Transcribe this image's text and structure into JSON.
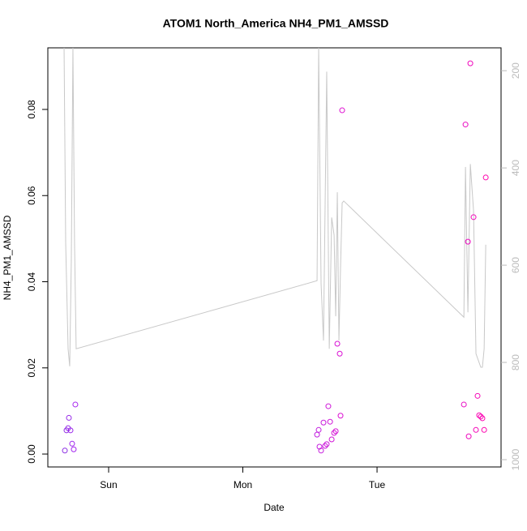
{
  "chart_data": {
    "type": "scatter",
    "title": "ATOM1 North_America NH4_PM1_AMSSD",
    "xlabel": "Date",
    "ylabel": "NH4_PM1_AMSSD",
    "x": [
      -0.326,
      -0.314,
      -0.302,
      -0.296,
      -0.284,
      -0.272,
      -0.26,
      -0.248,
      1.553,
      1.565,
      1.571,
      1.583,
      1.601,
      1.613,
      1.625,
      1.637,
      1.65,
      1.662,
      1.68,
      1.692,
      1.704,
      1.722,
      1.728,
      1.74,
      2.647,
      2.659,
      2.677,
      2.683,
      2.695,
      2.719,
      2.737,
      2.749,
      2.761,
      2.773,
      2.785,
      2.798,
      2.81
    ],
    "values": [
      0.0008,
      0.0055,
      0.006,
      0.0084,
      0.0055,
      0.0024,
      0.0011,
      0.0115,
      0.0045,
      0.0056,
      0.0017,
      0.0008,
      0.0073,
      0.0019,
      0.0023,
      0.0111,
      0.0075,
      0.0034,
      0.0049,
      0.0053,
      0.0256,
      0.0233,
      0.0089,
      0.0798,
      0.0115,
      0.0765,
      0.0493,
      0.0041,
      0.0907,
      0.055,
      0.0056,
      0.0135,
      0.009,
      0.0087,
      0.0083,
      0.0056,
      0.0642
    ],
    "colors": [
      "#8a2be2",
      "#8e2ae4",
      "#9229e6",
      "#9628e8",
      "#9a27ea",
      "#9e26ec",
      "#a225ee",
      "#a624f0",
      "#c01ee0",
      "#c21ddf",
      "#c41cde",
      "#c61bdd",
      "#c81adc",
      "#ca19db",
      "#cc18da",
      "#ce17d9",
      "#d016d8",
      "#d215d7",
      "#d414d6",
      "#d613d5",
      "#d812d4",
      "#da11d3",
      "#dc10d2",
      "#de0fd1",
      "#e80cc4",
      "#ea0bc2",
      "#ec0ac0",
      "#ee09be",
      "#f008bc",
      "#f207ba",
      "#f406b8",
      "#f605b6",
      "#f804b4",
      "#fa03b2",
      "#fc02b0",
      "#fd01ae",
      "#ff00ac"
    ],
    "xlim": [
      -0.453,
      2.924
    ],
    "xticks": [
      {
        "value": 0,
        "label": "Sun"
      },
      {
        "value": 1,
        "label": "Mon"
      },
      {
        "value": 2,
        "label": "Tue"
      }
    ],
    "ylim": [
      -0.003,
      0.0943
    ],
    "yticks": [
      {
        "value": 0,
        "label": "0.00"
      },
      0.02,
      0.04,
      0.06,
      0.08
    ],
    "y2lim": [
      1015,
      153
    ],
    "y2ticks": [
      200,
      400,
      600,
      800,
      1000
    ],
    "line": {
      "color": "#c8c8c8",
      "axis": "y2",
      "x": [
        -0.332,
        -0.32,
        -0.302,
        -0.29,
        -0.278,
        -0.266,
        -0.254,
        -0.242,
        1.553,
        1.565,
        1.583,
        1.601,
        1.625,
        1.644,
        1.662,
        1.68,
        1.692,
        1.704,
        1.716,
        1.728,
        1.74,
        1.752,
        2.647,
        2.659,
        2.677,
        2.695,
        2.719,
        2.737,
        2.773,
        2.785,
        2.798,
        2.81
      ],
      "values": [
        153,
        555,
        772,
        808,
        588,
        153,
        555,
        772,
        632,
        153,
        638,
        755,
        202,
        772,
        502,
        538,
        705,
        450,
        755,
        605,
        472,
        468,
        707,
        398,
        697,
        392,
        488,
        782,
        810,
        810,
        772,
        558
      ]
    }
  }
}
